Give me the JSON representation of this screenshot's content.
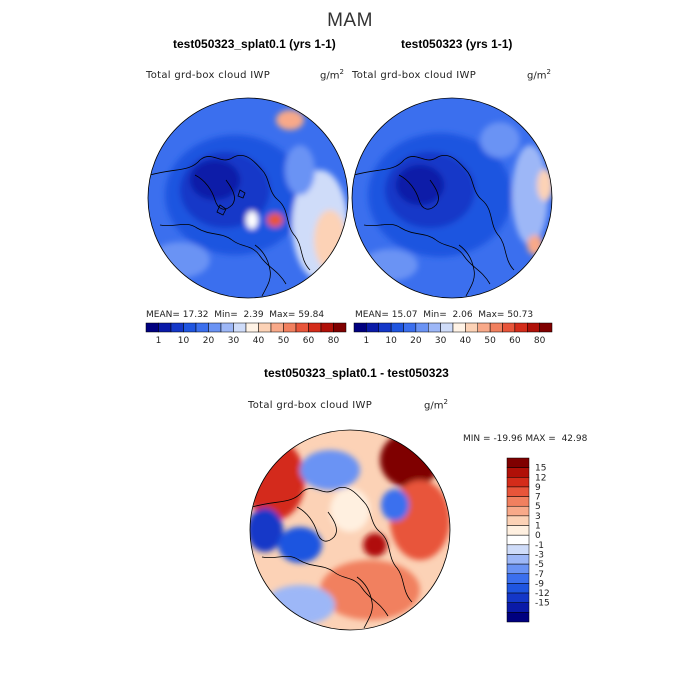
{
  "season": "MAM",
  "panels": [
    {
      "title": "test050323_splat0.1 (yrs 1-1)",
      "variable": "Total grd-box cloud IWP",
      "units": "g/m",
      "units_exp": "2",
      "stats": {
        "mean_label": "MEAN=",
        "mean": "17.32",
        "min_label": "Min=",
        "min": "2.39",
        "max_label": "Max=",
        "max": "59.84"
      }
    },
    {
      "title": "test050323 (yrs 1-1)",
      "variable": "Total grd-box cloud IWP",
      "units": "g/m",
      "units_exp": "2",
      "stats": {
        "mean_label": "MEAN=",
        "mean": "15.07",
        "min_label": "Min=",
        "min": "2.06",
        "max_label": "Max=",
        "max": "50.73"
      }
    }
  ],
  "diff_panel": {
    "title": "test050323_splat0.1 - test050323",
    "variable": "Total grd-box cloud IWP",
    "units": "g/m",
    "units_exp": "2",
    "stats": {
      "min_label": "MIN =",
      "min": "-19.96",
      "max_label": "MAX =",
      "max": "42.98"
    }
  },
  "colorbar_top": {
    "colors": [
      "#00007f",
      "#0a1aa8",
      "#1437c8",
      "#1f55e0",
      "#3b6fee",
      "#6a93f4",
      "#9db7f7",
      "#cfdcf9",
      "#fff3e6",
      "#fcd2b6",
      "#f8a989",
      "#f1805f",
      "#e8553a",
      "#d42c1a",
      "#b01008",
      "#7f0000"
    ],
    "tick_labels": [
      "1",
      "10",
      "20",
      "30",
      "40",
      "50",
      "60",
      "80"
    ]
  },
  "colorbar_diff": {
    "colors": [
      "#00007f",
      "#0a1aa8",
      "#1437c8",
      "#1f55e0",
      "#3b6fee",
      "#6a93f4",
      "#9db7f7",
      "#cfdcf9",
      "#ffffff",
      "#fff0e0",
      "#fcd2b6",
      "#f8a989",
      "#f1805f",
      "#e8553a",
      "#d42c1a",
      "#b01008",
      "#7f0000"
    ],
    "tick_labels": [
      "15",
      "12",
      "9",
      "7",
      "5",
      "3",
      "1",
      "0",
      "-1",
      "-3",
      "-5",
      "-7",
      "-9",
      "-12",
      "-15"
    ]
  },
  "colors": {
    "ocean_blue": "#1f55e0",
    "deep_blue": "#0a1aa8",
    "land_line": "#000000"
  }
}
